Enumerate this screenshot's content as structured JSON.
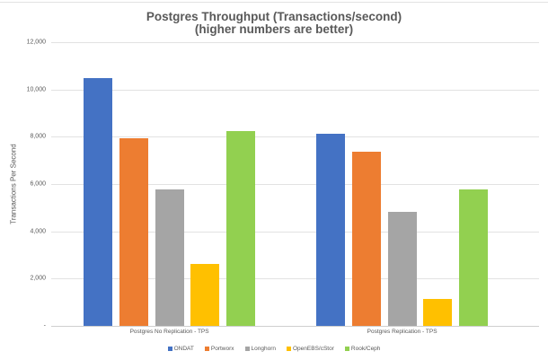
{
  "chart_data": {
    "type": "bar",
    "title": "Postgres Throughput (Transactions/second)",
    "subtitle": "(higher numbers are better)",
    "xlabel": "",
    "ylabel": "Transactions Per Second",
    "ylim": [
      0,
      12000
    ],
    "yticks": [
      "-",
      "2,000",
      "4,000",
      "6,000",
      "8,000",
      "10,000",
      "12,000"
    ],
    "grid": true,
    "legend_position": "bottom",
    "categories": [
      "Postgres No Replication - TPS",
      "Postgres Replication - TPS"
    ],
    "series": [
      {
        "name": "ONDAT",
        "color": "#4472C4",
        "values": [
          10500,
          8130
        ]
      },
      {
        "name": "Portworx",
        "color": "#ED7D31",
        "values": [
          7950,
          7360
        ]
      },
      {
        "name": "Longhorn",
        "color": "#A5A5A5",
        "values": [
          5790,
          4830
        ]
      },
      {
        "name": "OpenEBS/cStor",
        "color": "#FFC000",
        "values": [
          2630,
          1130
        ]
      },
      {
        "name": "Rook/Ceph",
        "color": "#92D050",
        "values": [
          8230,
          5770
        ]
      }
    ]
  }
}
